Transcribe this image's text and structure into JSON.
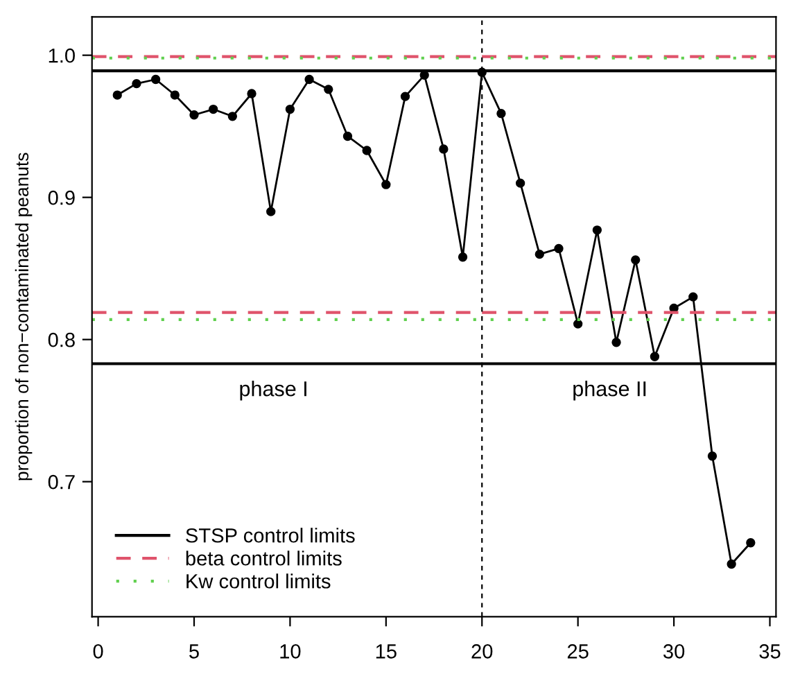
{
  "chart_data": {
    "type": "line",
    "ylabel": "proportion of non−contaminated peanuts",
    "x": [
      1,
      2,
      3,
      4,
      5,
      6,
      7,
      8,
      9,
      10,
      11,
      12,
      13,
      14,
      15,
      16,
      17,
      18,
      19,
      20,
      21,
      22,
      23,
      24,
      25,
      26,
      27,
      28,
      29,
      30,
      31,
      32,
      33,
      34
    ],
    "series": [
      {
        "color": "#000000",
        "values": [
          0.972,
          0.98,
          0.983,
          0.972,
          0.958,
          0.962,
          0.957,
          0.973,
          0.89,
          0.962,
          0.983,
          0.976,
          0.943,
          0.933,
          0.909,
          0.971,
          0.986,
          0.934,
          0.858,
          0.988,
          0.959,
          0.91,
          0.86,
          0.864,
          0.811,
          0.877,
          0.798,
          0.856,
          0.788,
          0.822,
          0.83,
          0.718,
          0.642,
          0.657
        ]
      }
    ],
    "marker": "circle",
    "line_style": "solid",
    "xlim": [
      -0.32,
      35.32
    ],
    "ylim": [
      0.605,
      1.027
    ],
    "xticks": [
      0,
      5,
      10,
      15,
      20,
      25,
      30,
      35
    ],
    "yticks": [
      0.7,
      0.8,
      0.9,
      {
        "value": 1.0,
        "label": "1.0"
      }
    ],
    "grid": false,
    "legend": "bottom left",
    "ref_lines": [
      {
        "axis": "y",
        "value": 0.989,
        "label": "STSP control limits",
        "color": "#000000",
        "line_style": "solid"
      },
      {
        "axis": "y",
        "value": 0.783,
        "color": "#000000",
        "line_style": "solid"
      },
      {
        "axis": "y",
        "value": 0.999,
        "label": "beta control limits",
        "color": "#df536b",
        "line_style": "dashed"
      },
      {
        "axis": "y",
        "value": 0.819,
        "color": "#df536b",
        "line_style": "dashed"
      },
      {
        "axis": "y",
        "value": 0.998,
        "label": "Kw control limits",
        "color": "#61d04f",
        "line_style": "dotted"
      },
      {
        "axis": "y",
        "value": 0.814,
        "color": "#61d04f",
        "line_style": "dotted"
      },
      {
        "axis": "x",
        "value": 20,
        "color": "#000000",
        "line_style": "dotted"
      }
    ],
    "annotations": [
      "phase I",
      "phase II"
    ]
  }
}
